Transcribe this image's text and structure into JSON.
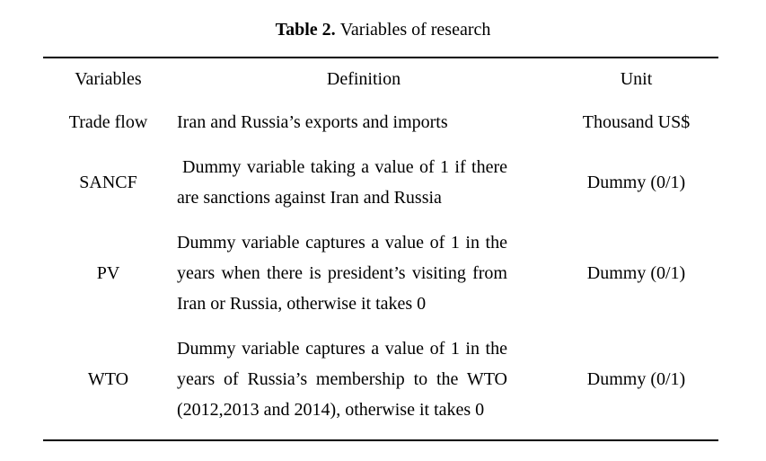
{
  "caption": {
    "label": "Table 2.",
    "text": "Variables of research"
  },
  "table": {
    "headers": [
      "Variables",
      "Definition",
      "Unit"
    ],
    "rows": [
      {
        "variable": "Trade flow",
        "definition": "Iran and Russia’s exports and imports",
        "unit": "Thousand US$"
      },
      {
        "variable": "SANCF",
        "definition": "Dummy variable taking a value of 1 if there are sanctions against Iran and Russia",
        "unit": "Dummy (0/1)"
      },
      {
        "variable": "PV",
        "definition": "Dummy variable captures a value of 1 in the years when there is president’s visiting from Iran or Russia, otherwise it takes 0",
        "unit": "Dummy (0/1)"
      },
      {
        "variable": "WTO",
        "definition": "Dummy variable captures a value of 1 in the years of Russia’s membership to the WTO (2012,2013 and 2014), otherwise it takes 0",
        "unit": "Dummy (0/1)"
      }
    ]
  },
  "colors": {
    "text": "#000000",
    "background": "#ffffff",
    "rule": "#000000"
  }
}
